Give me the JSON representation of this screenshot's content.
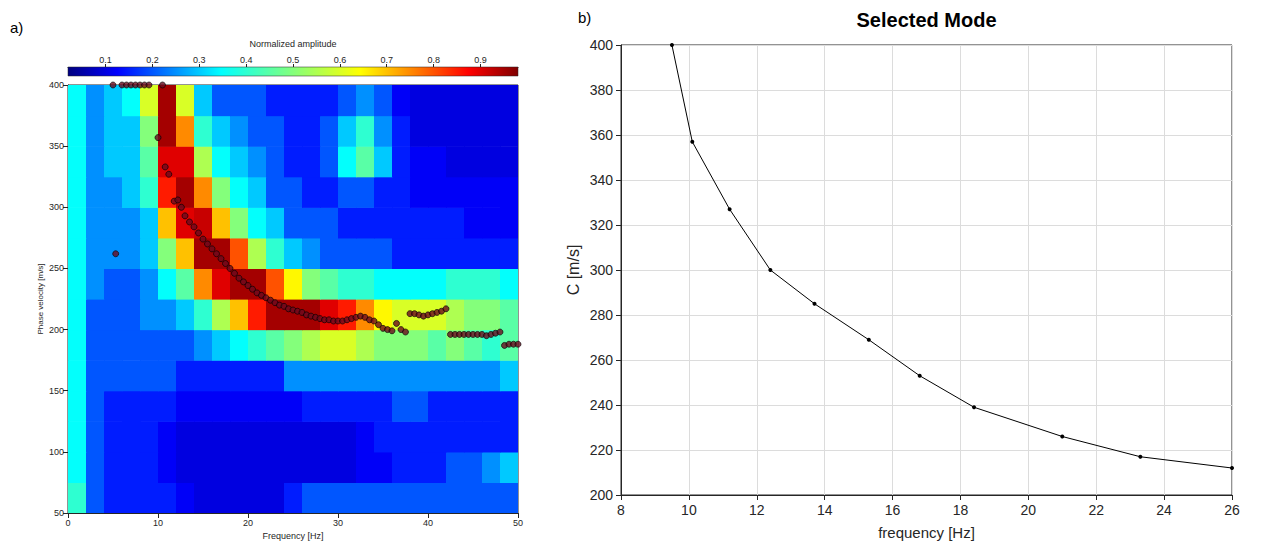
{
  "chart_data": [
    {
      "type": "heatmap",
      "panel_label": "a)",
      "xlabel": "Frequency [Hz]",
      "ylabel": "Phase velocity [m/s]",
      "xlim": [
        0,
        50
      ],
      "xticks": [
        0,
        10,
        20,
        30,
        40,
        50
      ],
      "ylim": [
        50,
        400
      ],
      "yticks": [
        50,
        100,
        150,
        200,
        250,
        300,
        350,
        400
      ],
      "grid": false,
      "heatmap": {
        "x_bins": [
          0,
          2,
          4,
          6,
          8,
          10,
          12,
          14,
          16,
          18,
          20,
          22,
          24,
          26,
          28,
          30,
          32,
          34,
          36,
          38,
          40,
          42,
          44,
          46,
          48,
          50
        ],
        "y_bins": [
          50,
          75,
          100,
          125,
          150,
          175,
          200,
          225,
          250,
          275,
          300,
          325,
          350,
          375,
          400
        ],
        "values": [
          [
            0.4,
            0.2,
            0.15,
            0.15,
            0.15,
            0.15,
            0.12,
            0.1,
            0.1,
            0.1,
            0.1,
            0.1,
            0.15,
            0.2,
            0.2,
            0.2,
            0.2,
            0.2,
            0.2,
            0.2,
            0.2,
            0.2,
            0.2,
            0.2,
            0.2
          ],
          [
            0.35,
            0.2,
            0.15,
            0.15,
            0.15,
            0.12,
            0.1,
            0.1,
            0.1,
            0.1,
            0.1,
            0.1,
            0.1,
            0.1,
            0.1,
            0.1,
            0.12,
            0.12,
            0.15,
            0.15,
            0.15,
            0.2,
            0.2,
            0.25,
            0.3
          ],
          [
            0.35,
            0.2,
            0.15,
            0.15,
            0.15,
            0.12,
            0.1,
            0.1,
            0.1,
            0.1,
            0.1,
            0.1,
            0.1,
            0.1,
            0.1,
            0.1,
            0.12,
            0.15,
            0.15,
            0.15,
            0.15,
            0.15,
            0.15,
            0.15,
            0.15
          ],
          [
            0.35,
            0.2,
            0.15,
            0.15,
            0.15,
            0.15,
            0.12,
            0.12,
            0.12,
            0.12,
            0.12,
            0.12,
            0.12,
            0.15,
            0.15,
            0.15,
            0.15,
            0.15,
            0.2,
            0.2,
            0.15,
            0.15,
            0.15,
            0.15,
            0.15
          ],
          [
            0.35,
            0.2,
            0.2,
            0.2,
            0.2,
            0.2,
            0.15,
            0.15,
            0.15,
            0.15,
            0.15,
            0.15,
            0.25,
            0.25,
            0.25,
            0.25,
            0.25,
            0.25,
            0.25,
            0.25,
            0.25,
            0.25,
            0.25,
            0.25,
            0.3
          ],
          [
            0.35,
            0.2,
            0.2,
            0.2,
            0.2,
            0.2,
            0.2,
            0.25,
            0.3,
            0.35,
            0.4,
            0.45,
            0.5,
            0.55,
            0.6,
            0.6,
            0.55,
            0.5,
            0.5,
            0.5,
            0.45,
            0.5,
            0.45,
            0.4,
            0.45
          ],
          [
            0.35,
            0.2,
            0.2,
            0.2,
            0.25,
            0.25,
            0.3,
            0.4,
            0.55,
            0.7,
            0.85,
            0.95,
            0.95,
            0.95,
            0.9,
            0.85,
            0.75,
            0.65,
            0.6,
            0.6,
            0.6,
            0.55,
            0.5,
            0.5,
            0.45
          ],
          [
            0.35,
            0.25,
            0.2,
            0.2,
            0.25,
            0.35,
            0.45,
            0.75,
            0.9,
            0.95,
            0.95,
            0.8,
            0.65,
            0.5,
            0.45,
            0.4,
            0.4,
            0.35,
            0.35,
            0.35,
            0.35,
            0.4,
            0.4,
            0.4,
            0.35
          ],
          [
            0.35,
            0.25,
            0.25,
            0.25,
            0.3,
            0.5,
            0.7,
            0.95,
            0.95,
            0.8,
            0.55,
            0.4,
            0.3,
            0.25,
            0.2,
            0.2,
            0.2,
            0.2,
            0.15,
            0.15,
            0.15,
            0.15,
            0.15,
            0.15,
            0.15
          ],
          [
            0.35,
            0.25,
            0.25,
            0.25,
            0.3,
            0.7,
            0.9,
            0.92,
            0.7,
            0.5,
            0.35,
            0.3,
            0.2,
            0.2,
            0.2,
            0.15,
            0.15,
            0.15,
            0.15,
            0.15,
            0.15,
            0.15,
            0.12,
            0.12,
            0.12
          ],
          [
            0.35,
            0.25,
            0.25,
            0.3,
            0.4,
            0.85,
            0.95,
            0.75,
            0.5,
            0.35,
            0.3,
            0.2,
            0.2,
            0.15,
            0.15,
            0.2,
            0.2,
            0.15,
            0.15,
            0.12,
            0.12,
            0.12,
            0.12,
            0.12,
            0.12
          ],
          [
            0.35,
            0.25,
            0.3,
            0.3,
            0.45,
            0.9,
            0.9,
            0.55,
            0.35,
            0.3,
            0.25,
            0.2,
            0.15,
            0.15,
            0.2,
            0.35,
            0.45,
            0.3,
            0.15,
            0.12,
            0.12,
            0.1,
            0.1,
            0.1,
            0.1
          ],
          [
            0.35,
            0.25,
            0.3,
            0.3,
            0.5,
            0.95,
            0.75,
            0.4,
            0.3,
            0.25,
            0.2,
            0.2,
            0.15,
            0.15,
            0.2,
            0.3,
            0.4,
            0.25,
            0.15,
            0.1,
            0.1,
            0.1,
            0.1,
            0.1,
            0.1
          ],
          [
            0.35,
            0.25,
            0.3,
            0.35,
            0.6,
            0.95,
            0.6,
            0.3,
            0.2,
            0.2,
            0.2,
            0.15,
            0.15,
            0.15,
            0.15,
            0.2,
            0.25,
            0.2,
            0.12,
            0.1,
            0.1,
            0.1,
            0.1,
            0.1,
            0.1
          ]
        ]
      },
      "colorbar": {
        "label": "Normalized amplitude",
        "range": [
          0.02,
          0.98
        ],
        "ticks": [
          0.1,
          0.2,
          0.3,
          0.4,
          0.5,
          0.6,
          0.7,
          0.8,
          0.9
        ]
      },
      "series": [
        {
          "type": "scatter",
          "color": "#6b0a1e",
          "marker": "circle",
          "x": [
            5,
            5.3,
            6,
            6.5,
            7,
            7.5,
            8,
            8.5,
            9,
            10,
            10.5,
            10.8,
            11.2,
            11.8,
            12.2,
            12.6,
            13,
            13.5,
            14,
            14.5,
            15,
            15.5,
            16,
            16.5,
            17,
            17.5,
            18,
            18.5,
            19,
            19.5,
            20,
            20.5,
            21,
            21.5,
            22,
            22.5,
            23,
            23.5,
            24,
            24.5,
            25,
            25.5,
            26,
            26.5,
            27,
            27.5,
            28,
            28.5,
            29,
            29.5,
            30,
            30.5,
            31,
            31.5,
            32,
            32.5,
            33,
            33.5,
            34,
            34.5,
            35,
            35.5,
            36,
            36.5,
            37,
            37.5,
            38,
            38.5,
            39,
            39.5,
            40,
            40.5,
            41,
            41.5,
            42,
            42.5,
            43,
            43.5,
            44,
            44.5,
            45,
            45.5,
            46,
            46.5,
            47,
            47.5,
            48,
            48.5,
            49,
            49.5,
            50
          ],
          "values": [
            400,
            262,
            400,
            400,
            400,
            400,
            400,
            400,
            400,
            357,
            400,
            333,
            327,
            305,
            306,
            300,
            293,
            288,
            284,
            279,
            274,
            270,
            266,
            262,
            258,
            254,
            250,
            246,
            242,
            239,
            236,
            233,
            230,
            228,
            226,
            224,
            222,
            220,
            219,
            217,
            216,
            215,
            214,
            212,
            211,
            210,
            209,
            208,
            208,
            207,
            207,
            207,
            208,
            209,
            210,
            211,
            210,
            208,
            207,
            204,
            201,
            200,
            199,
            205,
            200,
            198,
            213,
            213,
            212,
            211,
            212,
            213,
            214,
            215,
            217,
            196,
            196,
            196,
            196,
            196,
            196,
            196,
            196,
            195,
            196,
            197,
            198,
            187,
            188,
            188,
            188
          ]
        }
      ]
    },
    {
      "type": "line",
      "panel_label": "b)",
      "title": "Selected Mode",
      "xlabel": "frequency [Hz]",
      "ylabel": "C [m/s]",
      "xlim": [
        8,
        26
      ],
      "xticks": [
        8,
        10,
        12,
        14,
        16,
        18,
        20,
        22,
        24,
        26
      ],
      "ylim": [
        200,
        400
      ],
      "yticks": [
        200,
        220,
        240,
        260,
        280,
        300,
        320,
        340,
        360,
        380,
        400
      ],
      "grid": true,
      "series": [
        {
          "color": "#000000",
          "marker": "circle",
          "line_style": "solid",
          "x": [
            9.5,
            10.1,
            11.2,
            12.4,
            13.7,
            15.3,
            16.8,
            18.4,
            21,
            23.3,
            26
          ],
          "values": [
            400,
            357,
            327,
            300,
            285,
            269,
            253,
            239,
            226,
            217,
            212
          ]
        }
      ]
    }
  ]
}
